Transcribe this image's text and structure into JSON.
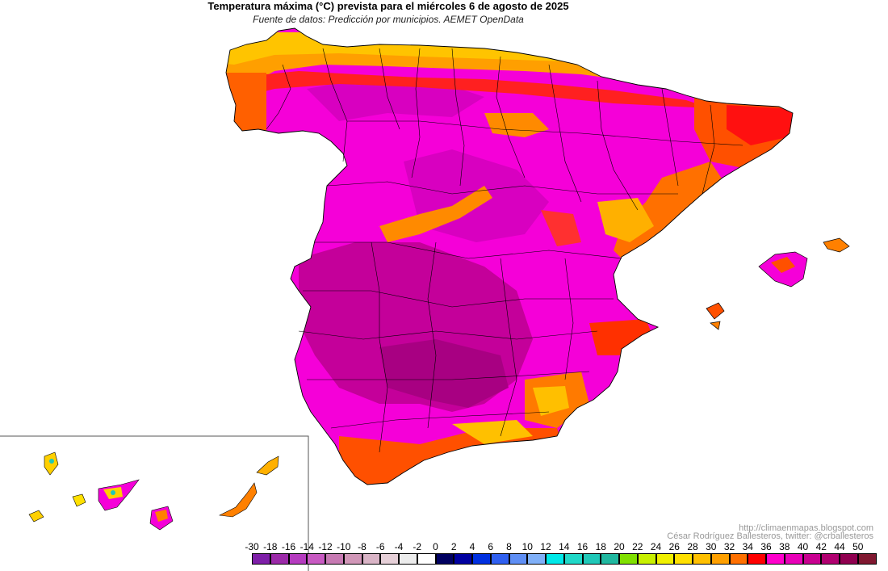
{
  "title": "Temperatura máxima (°C) prevista para el miércoles 6 de agosto de 2025",
  "subtitle": "Fuente de datos: Predicción por municipios. AEMET OpenData",
  "credits": {
    "url": "http://climaenmapas.blogspot.com",
    "author": "César Rodríguez Ballesteros, twitter: @crballesteros"
  },
  "legend": {
    "ticks": [
      "-30",
      "-18",
      "-16",
      "-14",
      "-12",
      "-10",
      "-8",
      "-6",
      "-4",
      "-2",
      "0",
      "2",
      "4",
      "6",
      "8",
      "10",
      "12",
      "14",
      "16",
      "18",
      "20",
      "22",
      "24",
      "26",
      "28",
      "30",
      "32",
      "34",
      "36",
      "38",
      "40",
      "42",
      "44",
      "50"
    ],
    "colors": [
      "#7e1fa8",
      "#9b2aa8",
      "#b53bbf",
      "#c85ac2",
      "#c77ab3",
      "#d197b8",
      "#d9b4c6",
      "#e6d0d8",
      "#ececec",
      "#ffffff",
      "#000060",
      "#0000a0",
      "#0030e0",
      "#3060f0",
      "#5f8ff5",
      "#80b0f8",
      "#00e8e8",
      "#20d8c8",
      "#20c8b8",
      "#20b8a0",
      "#80e000",
      "#c8f000",
      "#f0f000",
      "#ffe000",
      "#ffc000",
      "#ffa000",
      "#ff7000",
      "#ff0000",
      "#ff00cc",
      "#e800b8",
      "#c80090",
      "#b00070",
      "#900050",
      "#801830"
    ]
  },
  "colors": {
    "hot_magenta": "#ff00e0",
    "very_hot": "#c0008f",
    "orange": "#ff8000",
    "yellow": "#ffd000",
    "red": "#ff0000"
  }
}
